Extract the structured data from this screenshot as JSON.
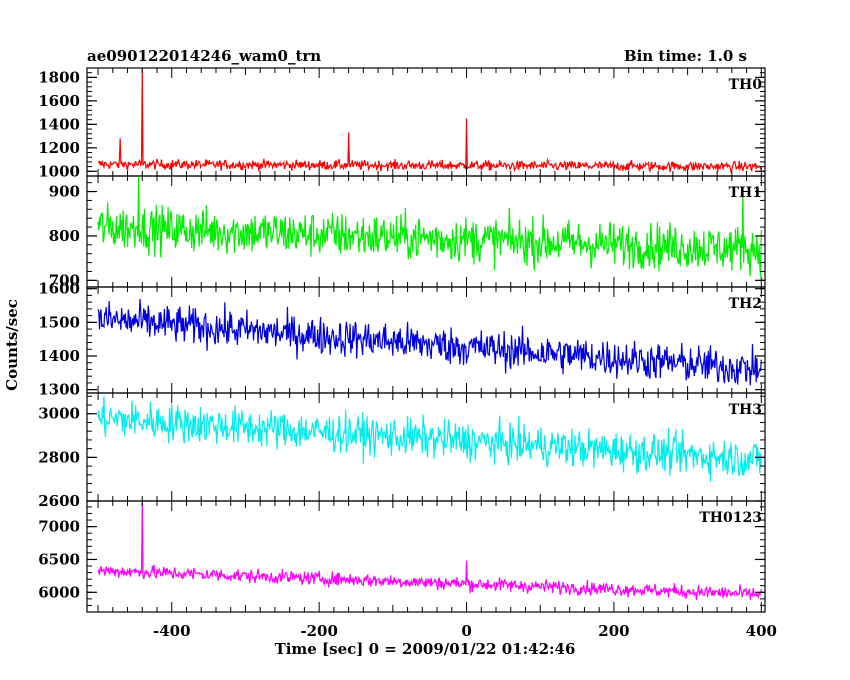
{
  "chart_data": {
    "type": "line",
    "title": "ae090122014246_wam0_trn",
    "bin_time": "Bin time: 1.0 s",
    "xlabel": "Time [sec] 0 = 2009/01/22 01:42:46",
    "ylabel": "Counts/sec",
    "xlim": [
      -515,
      405
    ],
    "x_ticks": [
      -400,
      -200,
      0,
      200,
      400
    ],
    "x_tick_labels": [
      "-400",
      "-200",
      "0",
      "200",
      "400"
    ],
    "grid": false,
    "legend": "none",
    "panels": [
      {
        "name": "TH0",
        "color": "#ff0000",
        "ylim": [
          960,
          1880
        ],
        "y_ticks": [
          1000,
          1200,
          1400,
          1600,
          1800
        ],
        "y_tick_labels": [
          "1000",
          "1200",
          "1400",
          "1600",
          "1800"
        ],
        "x_start": -500,
        "x_end": 400,
        "base_start": 1060,
        "base_end": 1040,
        "noise": 45,
        "spikes": [
          [
            -440,
            1880
          ],
          [
            -470,
            1280
          ],
          [
            -160,
            1330
          ],
          [
            0,
            1450
          ]
        ]
      },
      {
        "name": "TH1",
        "color": "#00ee00",
        "ylim": [
          685,
          935
        ],
        "y_ticks": [
          700,
          800,
          900
        ],
        "y_tick_labels": [
          "700",
          "800",
          "900"
        ],
        "x_start": -500,
        "x_end": 400,
        "base_start": 820,
        "base_end": 770,
        "noise": 55,
        "spikes": [
          [
            -445,
            935
          ],
          [
            375,
            905
          ]
        ]
      },
      {
        "name": "TH2",
        "color": "#0000dd",
        "ylim": [
          1290,
          1605
        ],
        "y_ticks": [
          1300,
          1400,
          1500,
          1600
        ],
        "y_tick_labels": [
          "1300",
          "1400",
          "1500",
          "1600"
        ],
        "x_start": -500,
        "x_end": 400,
        "base_start": 1510,
        "base_end": 1360,
        "noise": 60,
        "spikes": []
      },
      {
        "name": "TH3",
        "color": "#00eeee",
        "ylim": [
          2600,
          3095
        ],
        "y_ticks": [
          2600,
          2800,
          3000
        ],
        "y_tick_labels": [
          "2600",
          "2800",
          "3000"
        ],
        "x_start": -500,
        "x_end": 400,
        "base_start": 2980,
        "base_end": 2790,
        "noise": 95,
        "spikes": []
      },
      {
        "name": "TH0123",
        "color": "#ff00ff",
        "ylim": [
          5700,
          7390
        ],
        "y_ticks": [
          6000,
          6500,
          7000
        ],
        "y_tick_labels": [
          "6000",
          "6500",
          "7000"
        ],
        "x_start": -500,
        "x_end": 400,
        "base_start": 6330,
        "base_end": 5970,
        "noise": 110,
        "spikes": [
          [
            -440,
            7390
          ],
          [
            0,
            6480
          ]
        ]
      }
    ]
  }
}
